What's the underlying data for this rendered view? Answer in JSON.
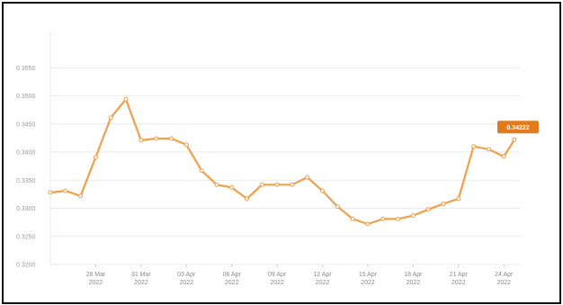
{
  "chart_data": {
    "type": "line",
    "title": "",
    "xlabel": "",
    "ylabel": "",
    "ylim": [
      0.32,
      0.36
    ],
    "yticks": [
      "0.3200",
      "0.3250",
      "0.3300",
      "0.3350",
      "0.3400",
      "0.3450",
      "0.3500",
      "0.3550"
    ],
    "xticks": [
      {
        "day": 3,
        "line1": "28 Mar",
        "line2": "2022"
      },
      {
        "day": 6,
        "line1": "31 Mar",
        "line2": "2022"
      },
      {
        "day": 9,
        "line1": "03 Apr",
        "line2": "2022"
      },
      {
        "day": 12,
        "line1": "06 Apr",
        "line2": "2022"
      },
      {
        "day": 15,
        "line1": "09 Apr",
        "line2": "2022"
      },
      {
        "day": 18,
        "line1": "12 Apr",
        "line2": "2022"
      },
      {
        "day": 21,
        "line1": "15 Apr",
        "line2": "2022"
      },
      {
        "day": 24,
        "line1": "18 Apr",
        "line2": "2022"
      },
      {
        "day": 27,
        "line1": "21 Apr",
        "line2": "2022"
      },
      {
        "day": 30,
        "line1": "24 Apr",
        "line2": "2022"
      }
    ],
    "x_start_date": "25 Mar 2022",
    "x_range_days": [
      0,
      30.7
    ],
    "series": [
      {
        "name": "",
        "color": "#f0a04a",
        "points": [
          {
            "d": 0,
            "y": 0.3328
          },
          {
            "d": 1,
            "y": 0.3331
          },
          {
            "d": 2,
            "y": 0.3322
          },
          {
            "d": 3,
            "y": 0.3391
          },
          {
            "d": 4,
            "y": 0.3461
          },
          {
            "d": 5,
            "y": 0.3494
          },
          {
            "d": 6,
            "y": 0.3421
          },
          {
            "d": 7,
            "y": 0.3424
          },
          {
            "d": 8,
            "y": 0.3424
          },
          {
            "d": 9,
            "y": 0.3413
          },
          {
            "d": 10,
            "y": 0.3367
          },
          {
            "d": 11,
            "y": 0.3342
          },
          {
            "d": 12,
            "y": 0.3337
          },
          {
            "d": 13,
            "y": 0.3317
          },
          {
            "d": 14,
            "y": 0.3342
          },
          {
            "d": 15,
            "y": 0.3342
          },
          {
            "d": 16,
            "y": 0.3342
          },
          {
            "d": 17,
            "y": 0.3355
          },
          {
            "d": 18,
            "y": 0.3331
          },
          {
            "d": 19,
            "y": 0.3303
          },
          {
            "d": 20,
            "y": 0.3281
          },
          {
            "d": 21,
            "y": 0.3272
          },
          {
            "d": 22,
            "y": 0.3281
          },
          {
            "d": 23,
            "y": 0.3281
          },
          {
            "d": 24,
            "y": 0.3287
          },
          {
            "d": 25,
            "y": 0.3298
          },
          {
            "d": 26,
            "y": 0.3308
          },
          {
            "d": 27,
            "y": 0.3317
          },
          {
            "d": 28,
            "y": 0.341
          },
          {
            "d": 29,
            "y": 0.3405
          },
          {
            "d": 30,
            "y": 0.3392
          },
          {
            "d": 30.7,
            "y": 0.3422
          }
        ]
      }
    ],
    "last_value_label": "0.34222",
    "grid": true,
    "legend": "none"
  }
}
